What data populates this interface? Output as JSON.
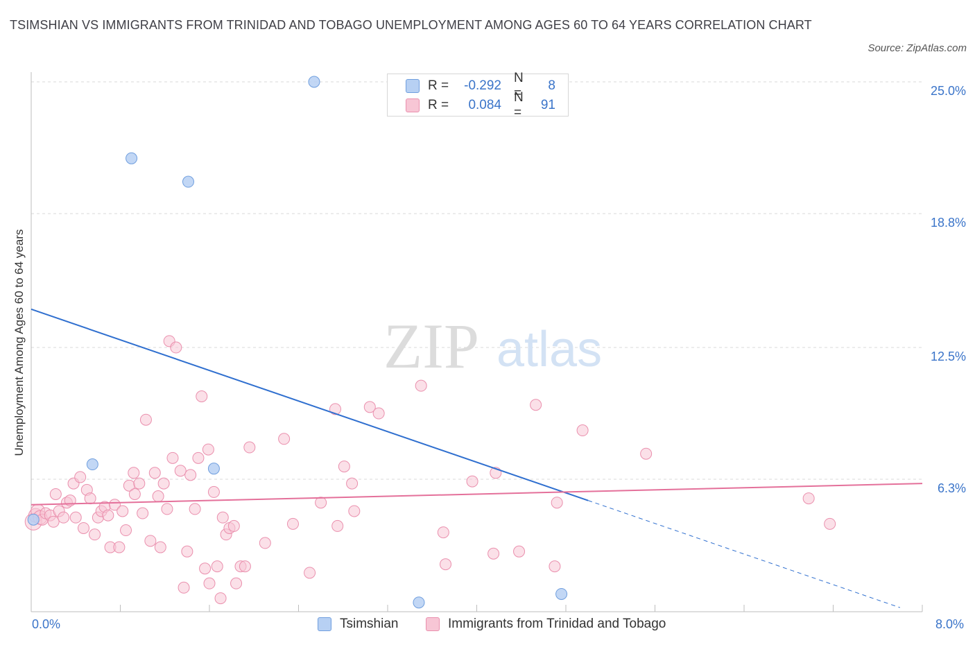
{
  "header": {
    "title": "TSIMSHIAN VS IMMIGRANTS FROM TRINIDAD AND TOBAGO UNEMPLOYMENT AMONG AGES 60 TO 64 YEARS CORRELATION CHART",
    "source": "Source: ZipAtlas.com"
  },
  "legend": {
    "rows": [
      {
        "r_label": "R =",
        "r_value": "-0.292",
        "n_label": "N =",
        "n_value": "8"
      },
      {
        "r_label": "R =",
        "r_value": "0.084",
        "n_label": "N =",
        "n_value": "91"
      }
    ]
  },
  "bottom_legend": {
    "series_a": "Tsimshian",
    "series_b": "Immigrants from Trinidad and Tobago"
  },
  "watermark": {
    "zip": "ZIP",
    "atlas": "atlas"
  },
  "colors": {
    "blue_fill": "#b7d0f3",
    "blue_stroke": "#6f9ede",
    "blue_line": "#2f6fcf",
    "pink_fill": "#f7c6d5",
    "pink_stroke": "#ea8fad",
    "pink_line": "#e4709a",
    "axis_text": "#3a74c9",
    "grid": "#d9d9d9"
  },
  "chart_data": {
    "type": "scatter",
    "title": "TSIMSHIAN VS IMMIGRANTS FROM TRINIDAD AND TOBAGO UNEMPLOYMENT AMONG AGES 60 TO 64 YEARS CORRELATION CHART",
    "xlabel": "",
    "ylabel": "Unemployment Among Ages 60 to 64 years",
    "xlim": [
      0,
      8
    ],
    "ylim": [
      0,
      25.5
    ],
    "x_tick_labels": [
      "0.0%",
      "8.0%"
    ],
    "y_tick_labels": [
      "25.0%",
      "18.8%",
      "12.5%",
      "6.3%"
    ],
    "y_ticks": [
      25.0,
      18.8,
      12.5,
      6.3
    ],
    "grid": true,
    "legend_placement": "top-center",
    "series": [
      {
        "name": "Tsimshian",
        "r": -0.292,
        "n": 8,
        "points": [
          [
            0.02,
            4.4
          ],
          [
            0.55,
            7.0
          ],
          [
            0.9,
            21.4
          ],
          [
            1.41,
            20.3
          ],
          [
            1.64,
            6.8
          ],
          [
            2.54,
            25.0
          ],
          [
            3.48,
            0.5
          ],
          [
            4.76,
            0.9
          ]
        ],
        "trend": {
          "x0": 0,
          "y0": 14.3,
          "x1": 5.0,
          "y1": 5.3,
          "dash_to_x": 7.8
        }
      },
      {
        "name": "Immigrants from Trinidad and Tobago",
        "r": 0.084,
        "n": 91,
        "points": [
          [
            0.02,
            4.3
          ],
          [
            0.04,
            4.6
          ],
          [
            0.06,
            4.8
          ],
          [
            0.08,
            4.5
          ],
          [
            0.1,
            4.4
          ],
          [
            0.13,
            4.7
          ],
          [
            0.17,
            4.6
          ],
          [
            0.2,
            4.3
          ],
          [
            0.22,
            5.6
          ],
          [
            0.25,
            4.8
          ],
          [
            0.29,
            4.5
          ],
          [
            0.32,
            5.2
          ],
          [
            0.35,
            5.3
          ],
          [
            0.38,
            6.1
          ],
          [
            0.4,
            4.5
          ],
          [
            0.44,
            6.4
          ],
          [
            0.47,
            4.0
          ],
          [
            0.5,
            5.8
          ],
          [
            0.53,
            5.4
          ],
          [
            0.57,
            3.7
          ],
          [
            0.6,
            4.5
          ],
          [
            0.63,
            4.8
          ],
          [
            0.66,
            5.0
          ],
          [
            0.69,
            4.6
          ],
          [
            0.71,
            3.1
          ],
          [
            0.75,
            5.1
          ],
          [
            0.79,
            3.1
          ],
          [
            0.82,
            4.8
          ],
          [
            0.85,
            3.9
          ],
          [
            0.88,
            6.0
          ],
          [
            0.92,
            6.6
          ],
          [
            0.93,
            5.6
          ],
          [
            0.97,
            6.1
          ],
          [
            1.0,
            4.7
          ],
          [
            1.03,
            9.1
          ],
          [
            1.07,
            3.4
          ],
          [
            1.11,
            6.6
          ],
          [
            1.14,
            5.5
          ],
          [
            1.16,
            3.1
          ],
          [
            1.19,
            6.1
          ],
          [
            1.22,
            4.9
          ],
          [
            1.24,
            12.8
          ],
          [
            1.27,
            7.3
          ],
          [
            1.3,
            12.5
          ],
          [
            1.34,
            6.7
          ],
          [
            1.37,
            1.2
          ],
          [
            1.4,
            2.9
          ],
          [
            1.43,
            6.5
          ],
          [
            1.47,
            4.9
          ],
          [
            1.5,
            7.3
          ],
          [
            1.53,
            10.2
          ],
          [
            1.56,
            2.1
          ],
          [
            1.59,
            7.7
          ],
          [
            1.6,
            1.4
          ],
          [
            1.64,
            5.7
          ],
          [
            1.67,
            2.2
          ],
          [
            1.7,
            0.7
          ],
          [
            1.72,
            4.5
          ],
          [
            1.75,
            3.7
          ],
          [
            1.78,
            4.0
          ],
          [
            1.82,
            4.1
          ],
          [
            1.84,
            1.4
          ],
          [
            1.88,
            2.2
          ],
          [
            1.92,
            2.2
          ],
          [
            1.96,
            7.8
          ],
          [
            2.1,
            3.3
          ],
          [
            2.27,
            8.2
          ],
          [
            2.35,
            4.2
          ],
          [
            2.5,
            1.9
          ],
          [
            2.6,
            5.2
          ],
          [
            2.75,
            4.1
          ],
          [
            2.73,
            9.6
          ],
          [
            2.81,
            6.9
          ],
          [
            2.88,
            6.1
          ],
          [
            2.9,
            4.8
          ],
          [
            3.04,
            9.7
          ],
          [
            3.12,
            9.4
          ],
          [
            3.5,
            10.7
          ],
          [
            3.7,
            3.8
          ],
          [
            3.72,
            2.3
          ],
          [
            3.96,
            6.2
          ],
          [
            4.15,
            2.8
          ],
          [
            4.17,
            6.6
          ],
          [
            4.38,
            2.9
          ],
          [
            4.53,
            9.8
          ],
          [
            4.72,
            5.2
          ],
          [
            4.7,
            2.2
          ],
          [
            4.95,
            8.6
          ],
          [
            5.52,
            7.5
          ],
          [
            6.98,
            5.4
          ],
          [
            7.17,
            4.2
          ]
        ],
        "trend": {
          "x0": 0,
          "y0": 5.1,
          "x1": 8.0,
          "y1": 6.1
        }
      }
    ]
  }
}
